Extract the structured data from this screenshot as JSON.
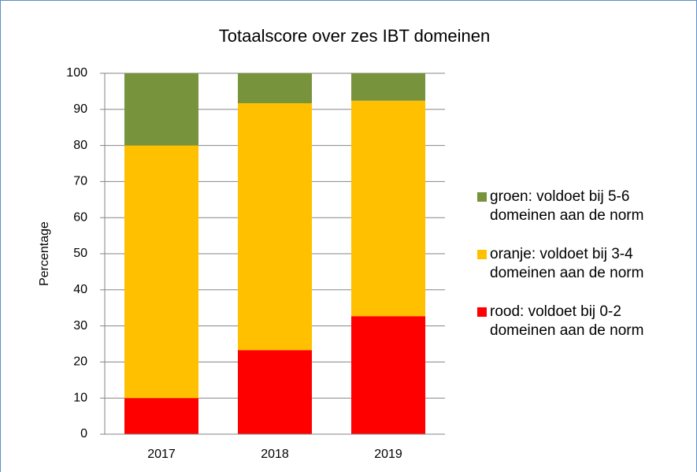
{
  "chart_data": {
    "type": "stacked_bar",
    "title": "Totaalscore over zes IBT domeinen",
    "y_label": "Percentage",
    "categories": [
      "2017",
      "2018",
      "2019"
    ],
    "series": [
      {
        "name": "rood: voldoet bij 0-2 domeinen aan de norm",
        "color": "#ff0000",
        "values": [
          10,
          23.3,
          32.7
        ]
      },
      {
        "name": "oranje: voldoet bij 3-4 domeinen aan de norm",
        "color": "#ffc000",
        "values": [
          70,
          68.4,
          59.7
        ]
      },
      {
        "name": "groen: voldoet bij 5-6 domeinen aan de norm",
        "color": "#77933c",
        "values": [
          20,
          8.3,
          7.6
        ]
      }
    ],
    "ylim": [
      0,
      100
    ],
    "yticks": [
      0,
      10,
      20,
      30,
      40,
      50,
      60,
      70,
      80,
      90,
      100
    ],
    "grid": true
  }
}
